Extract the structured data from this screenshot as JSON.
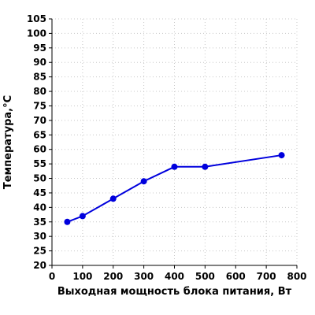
{
  "chart_data": {
    "type": "line",
    "title": "",
    "xlabel": "Выходная мощность блока питания, Вт",
    "ylabel": "Температура,°С",
    "xlim": [
      0,
      800
    ],
    "ylim": [
      20,
      105
    ],
    "x_ticks": [
      0,
      100,
      200,
      300,
      400,
      500,
      600,
      700,
      800
    ],
    "y_ticks": [
      20,
      25,
      30,
      35,
      40,
      45,
      50,
      55,
      60,
      65,
      70,
      75,
      80,
      85,
      90,
      95,
      100,
      105
    ],
    "grid": true,
    "series": [
      {
        "color": "#0000dd",
        "x": [
          50,
          100,
          200,
          300,
          400,
          500,
          750
        ],
        "y": [
          35,
          37,
          43,
          49,
          54,
          54,
          58
        ]
      }
    ]
  }
}
